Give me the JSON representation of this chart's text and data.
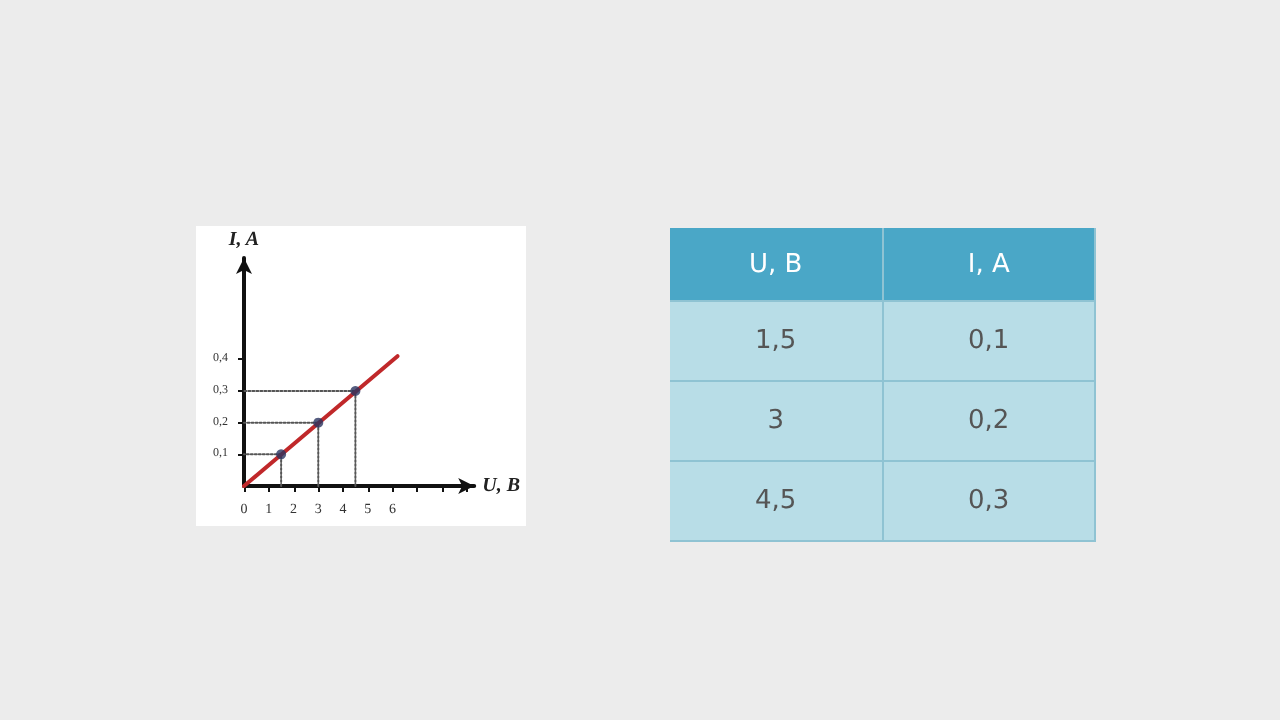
{
  "chart_data": [
    {
      "type": "line",
      "xlabel": "U, B",
      "ylabel": "I, A",
      "xlim": [
        0,
        9.3
      ],
      "ylim": [
        0,
        0.72
      ],
      "xticks": [
        {
          "value": 0,
          "label": "0"
        },
        1,
        2,
        3,
        4,
        5,
        6,
        {
          "value": 7,
          "label": null
        },
        {
          "value": 8,
          "label": null
        },
        {
          "value": 9,
          "label": null
        }
      ],
      "yticks": [
        {
          "value": 0.1,
          "label": "0,1"
        },
        {
          "value": 0.2,
          "label": "0,2"
        },
        {
          "value": 0.3,
          "label": "0,3"
        },
        {
          "value": 0.4,
          "label": "0,4"
        }
      ],
      "series": [
        {
          "color": "#c0282a",
          "x": [
            0,
            6.2
          ],
          "values": [
            0,
            0.41
          ],
          "marker": "none",
          "line_style": "solid"
        },
        {
          "color": "#555555",
          "x": [
            1.5,
            1.5,
            0
          ],
          "values": [
            0,
            0.1,
            0.1
          ],
          "marker": "none",
          "line_style": "dotted"
        },
        {
          "color": "#555555",
          "x": [
            3,
            3,
            0
          ],
          "values": [
            0,
            0.2,
            0.2
          ],
          "marker": "none",
          "line_style": "dotted"
        },
        {
          "color": "#555555",
          "x": [
            4.5,
            4.5,
            0
          ],
          "values": [
            0,
            0.3,
            0.3
          ],
          "marker": "none",
          "line_style": "dotted"
        },
        {
          "type": "scatter",
          "color": "#2a3560",
          "x": [
            1.5,
            3,
            4.5
          ],
          "values": [
            0.1,
            0.2,
            0.3
          ],
          "marker": "circle"
        }
      ],
      "grid": false
    },
    {
      "type": "other",
      "annotations": [
        "U, B",
        "I, A",
        "1,5",
        "0,1",
        "3",
        "0,2",
        "4,5",
        "0,3"
      ]
    }
  ]
}
